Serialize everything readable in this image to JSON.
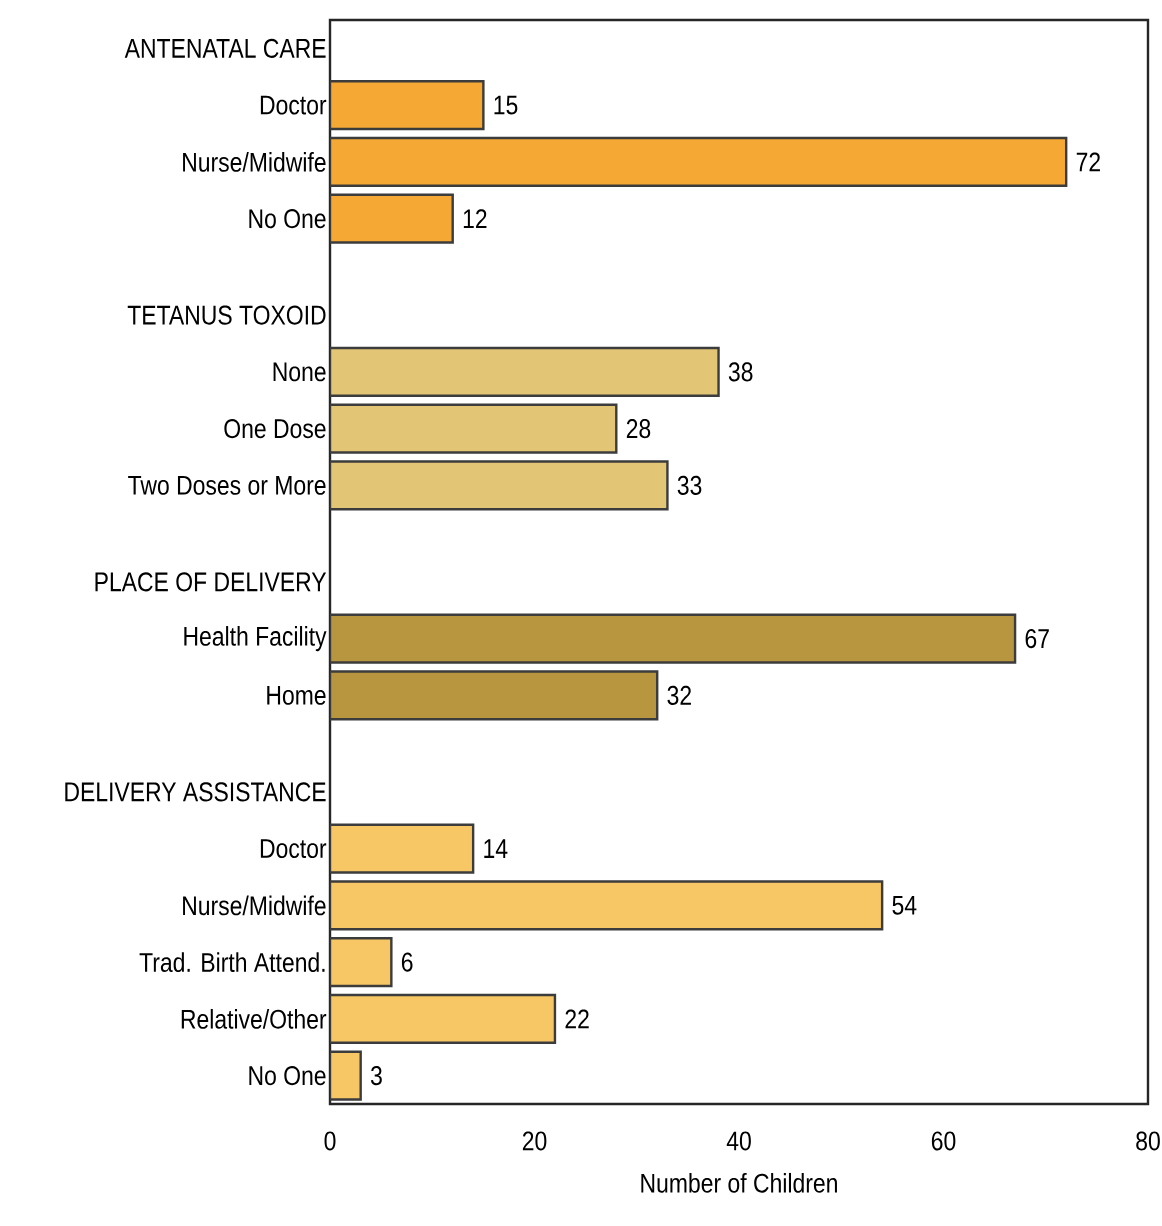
{
  "chart_data": {
    "type": "bar",
    "orientation": "horizontal",
    "categories": [
      "ANTENATAL CARE",
      "Doctor",
      "Nurse/Midwife",
      "No One",
      "TETANUS TOXOID",
      "None",
      "One Dose",
      "Two Doses or More",
      "PLACE OF DELIVERY",
      "Health Facility",
      "Home",
      "DELIVERY ASSISTANCE",
      "Doctor",
      "Nurse/Midwife",
      "Trad. Birth Attend.",
      "Relative/Other",
      "No One"
    ],
    "values": [
      null,
      15,
      72,
      12,
      null,
      38,
      28,
      33,
      null,
      67,
      32,
      null,
      14,
      54,
      6,
      22,
      3
    ],
    "colors": [
      null,
      "#f5a833",
      "#f5a833",
      "#f5a833",
      null,
      "#e2c676",
      "#e2c676",
      "#e2c676",
      null,
      "#b8963f",
      "#b8963f",
      null,
      "#f7c765",
      "#f7c765",
      "#f7c765",
      "#f7c765",
      "#f7c765"
    ],
    "data_labels": true,
    "xlabel": "Number of Children",
    "xlim": [
      0,
      80
    ],
    "xticks": [
      0,
      20,
      40,
      60,
      80
    ]
  }
}
